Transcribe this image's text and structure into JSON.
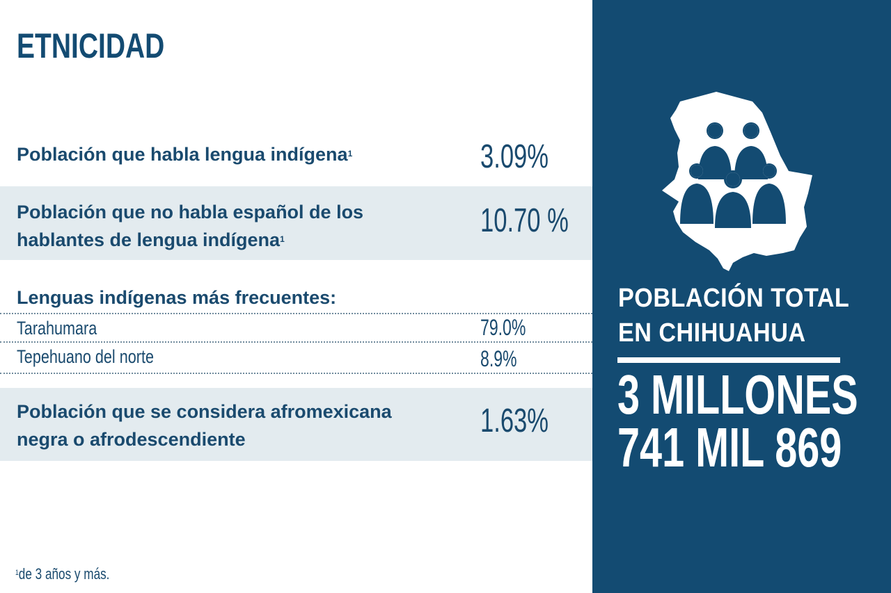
{
  "title": "ETNICIDAD",
  "rows": [
    {
      "label": "Población que habla lengua indígena",
      "sup": "1",
      "value": "3.09%"
    },
    {
      "label_line1": "Población que no habla español de los",
      "label_line2": "hablantes de lengua indígena",
      "sup": "1",
      "value": "10.70 %"
    },
    {
      "label_line1": "Población que se considera afromexicana",
      "label_line2": "negra o afrodescendiente",
      "value": "1.63%"
    }
  ],
  "languages": {
    "heading": "Lenguas indígenas más frecuentes:",
    "items": [
      {
        "name": "Tarahumara",
        "value": "79.0%"
      },
      {
        "name": "Tepehuano del norte",
        "value": "8.9%"
      }
    ]
  },
  "footnote": {
    "sup": "1",
    "text": "de 3 años y más."
  },
  "panel": {
    "label_line1": "POBLACIÓN TOTAL",
    "label_line2": "EN CHIHUAHUA",
    "value_line1": "3 MILLONES",
    "value_line2": "741 MIL 869",
    "icon": "chihuahua-map-people-icon"
  },
  "colors": {
    "navy": "#134b72",
    "text": "#1a4a6e",
    "band": "#e3ebef",
    "white": "#ffffff"
  }
}
